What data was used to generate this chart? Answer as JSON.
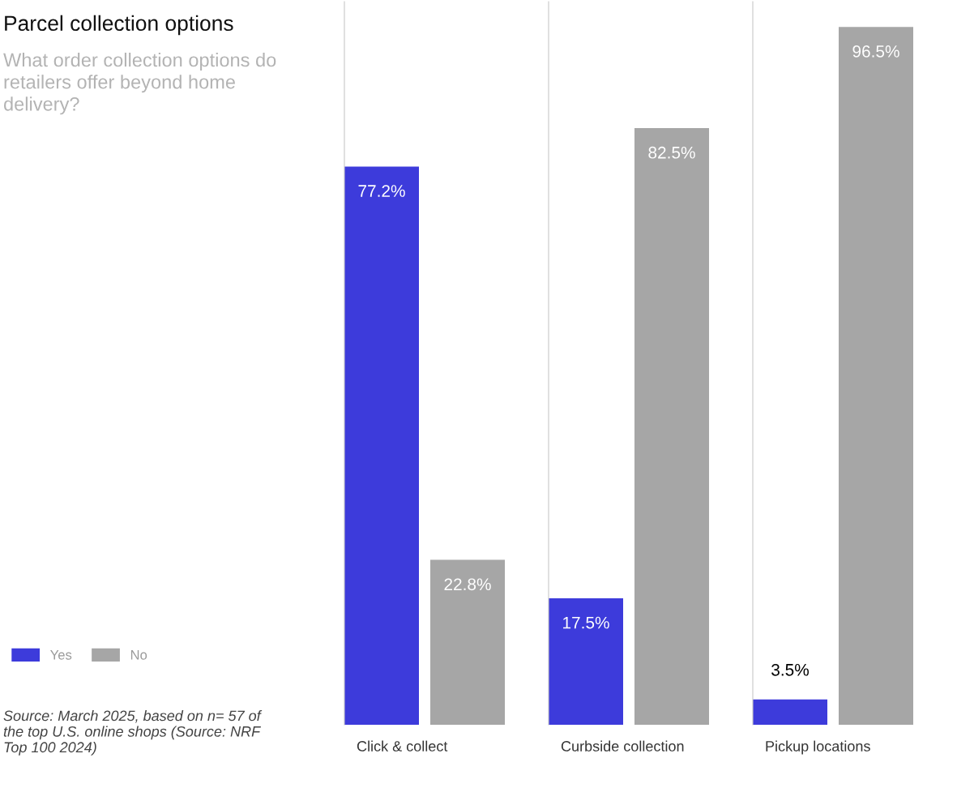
{
  "chart_data": {
    "type": "bar",
    "title": "Parcel collection options",
    "subtitle": "What order collection options do retailers offer beyond home delivery?",
    "categories": [
      "Click & collect",
      "Curbside collection",
      "Pickup locations"
    ],
    "series": [
      {
        "name": "Yes",
        "color": "#3d3bdb",
        "values": [
          77.2,
          17.5,
          3.5
        ],
        "value_labels": [
          "77.2%",
          "17.5%",
          "3.5%"
        ]
      },
      {
        "name": "No",
        "color": "#a6a6a6",
        "values": [
          22.8,
          82.5,
          96.5
        ],
        "value_labels": [
          "22.8%",
          "82.5%",
          "96.5%"
        ]
      }
    ],
    "ylim": [
      0,
      100
    ],
    "tick_labels": "x",
    "legend": "bottom left",
    "annotations": [
      "Source: March 2025, based on n= 57 of the top U.S. online shops (Source: NRF Top 100 2024)"
    ]
  }
}
